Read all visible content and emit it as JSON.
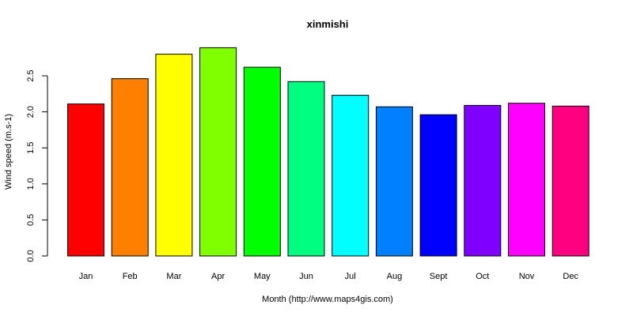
{
  "chart_data": {
    "type": "bar",
    "title": "xinmishi",
    "xlabel": "Month (http://www.maps4gis.com)",
    "ylabel": "Wind speed (m.s-1)",
    "categories": [
      "Jan",
      "Feb",
      "Mar",
      "Apr",
      "May",
      "Jun",
      "Jul",
      "Aug",
      "Sept",
      "Oct",
      "Nov",
      "Dec"
    ],
    "values": [
      2.11,
      2.46,
      2.8,
      2.89,
      2.62,
      2.42,
      2.23,
      2.07,
      1.96,
      2.09,
      2.12,
      2.08
    ],
    "colors": [
      "#FF0000",
      "#FF8000",
      "#FFFF00",
      "#80FF00",
      "#00FF00",
      "#00FF80",
      "#00FFFF",
      "#0080FF",
      "#0000FF",
      "#8000FF",
      "#FF00FF",
      "#FF0080"
    ],
    "yticks": [
      "0.0",
      "0.5",
      "1.0",
      "1.5",
      "2.0",
      "2.5"
    ],
    "ylim": [
      0,
      2.9
    ],
    "grid": false,
    "legend": "none"
  }
}
